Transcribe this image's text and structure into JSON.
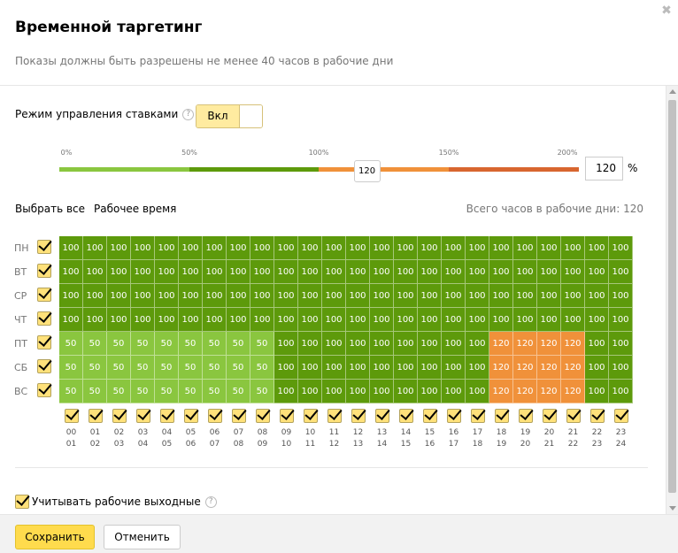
{
  "dialog": {
    "title": "Временной таргетинг",
    "subtitle": "Показы должны быть разрешены не менее 40 часов в рабочие дни",
    "close_icon": "close-icon"
  },
  "bid_mode": {
    "label": "Режим управления ставками",
    "help_icon": "question-icon",
    "toggle_label": "Вкл",
    "enabled": true
  },
  "slider": {
    "ticks": [
      "0%",
      "50%",
      "100%",
      "150%",
      "200%"
    ],
    "value": 120,
    "value_label": "120",
    "input_value": "120",
    "unit": "%",
    "colors": {
      "light_green": "#8ac63f",
      "dark_green": "#5d9a0b",
      "light_orange": "#f0913a",
      "dark_orange": "#d8662f"
    }
  },
  "links": {
    "select_all": "Выбрать все",
    "work_time": "Рабочее время"
  },
  "total_hours": {
    "text": "Всего часов в рабочие дни: 120"
  },
  "days": [
    {
      "label": "ПН",
      "checked": true,
      "values": [
        100,
        100,
        100,
        100,
        100,
        100,
        100,
        100,
        100,
        100,
        100,
        100,
        100,
        100,
        100,
        100,
        100,
        100,
        100,
        100,
        100,
        100,
        100,
        100
      ]
    },
    {
      "label": "ВТ",
      "checked": true,
      "values": [
        100,
        100,
        100,
        100,
        100,
        100,
        100,
        100,
        100,
        100,
        100,
        100,
        100,
        100,
        100,
        100,
        100,
        100,
        100,
        100,
        100,
        100,
        100,
        100
      ]
    },
    {
      "label": "СР",
      "checked": true,
      "values": [
        100,
        100,
        100,
        100,
        100,
        100,
        100,
        100,
        100,
        100,
        100,
        100,
        100,
        100,
        100,
        100,
        100,
        100,
        100,
        100,
        100,
        100,
        100,
        100
      ]
    },
    {
      "label": "ЧТ",
      "checked": true,
      "values": [
        100,
        100,
        100,
        100,
        100,
        100,
        100,
        100,
        100,
        100,
        100,
        100,
        100,
        100,
        100,
        100,
        100,
        100,
        100,
        100,
        100,
        100,
        100,
        100
      ]
    },
    {
      "label": "ПТ",
      "checked": true,
      "values": [
        50,
        50,
        50,
        50,
        50,
        50,
        50,
        50,
        50,
        100,
        100,
        100,
        100,
        100,
        100,
        100,
        100,
        100,
        120,
        120,
        120,
        120,
        100,
        100
      ]
    },
    {
      "label": "СБ",
      "checked": true,
      "values": [
        50,
        50,
        50,
        50,
        50,
        50,
        50,
        50,
        50,
        100,
        100,
        100,
        100,
        100,
        100,
        100,
        100,
        100,
        120,
        120,
        120,
        120,
        100,
        100
      ]
    },
    {
      "label": "ВС",
      "checked": true,
      "values": [
        50,
        50,
        50,
        50,
        50,
        50,
        50,
        50,
        50,
        100,
        100,
        100,
        100,
        100,
        100,
        100,
        100,
        100,
        120,
        120,
        120,
        120,
        100,
        100
      ]
    }
  ],
  "hours": [
    {
      "label": "00\n01",
      "checked": true
    },
    {
      "label": "01\n02",
      "checked": true
    },
    {
      "label": "02\n03",
      "checked": true
    },
    {
      "label": "03\n04",
      "checked": true
    },
    {
      "label": "04\n05",
      "checked": true
    },
    {
      "label": "05\n06",
      "checked": true
    },
    {
      "label": "06\n07",
      "checked": true
    },
    {
      "label": "07\n08",
      "checked": true
    },
    {
      "label": "08\n09",
      "checked": true
    },
    {
      "label": "09\n10",
      "checked": true
    },
    {
      "label": "10\n11",
      "checked": true
    },
    {
      "label": "11\n12",
      "checked": true
    },
    {
      "label": "12\n13",
      "checked": true
    },
    {
      "label": "13\n14",
      "checked": true
    },
    {
      "label": "14\n15",
      "checked": true
    },
    {
      "label": "15\n16",
      "checked": true
    },
    {
      "label": "16\n17",
      "checked": true
    },
    {
      "label": "17\n18",
      "checked": true
    },
    {
      "label": "18\n19",
      "checked": true
    },
    {
      "label": "19\n20",
      "checked": true
    },
    {
      "label": "20\n21",
      "checked": true
    },
    {
      "label": "21\n22",
      "checked": true
    },
    {
      "label": "22\n23",
      "checked": true
    },
    {
      "label": "23\n24",
      "checked": true
    }
  ],
  "cell_colors": {
    "50": "#8ac63f",
    "100": "#5d9a0b",
    "120": "#f0913a"
  },
  "weekend": {
    "label": "Учитывать рабочие выходные",
    "checked": true,
    "help_icon": "question-icon"
  },
  "footer": {
    "save_label": "Сохранить",
    "cancel_label": "Отменить"
  }
}
